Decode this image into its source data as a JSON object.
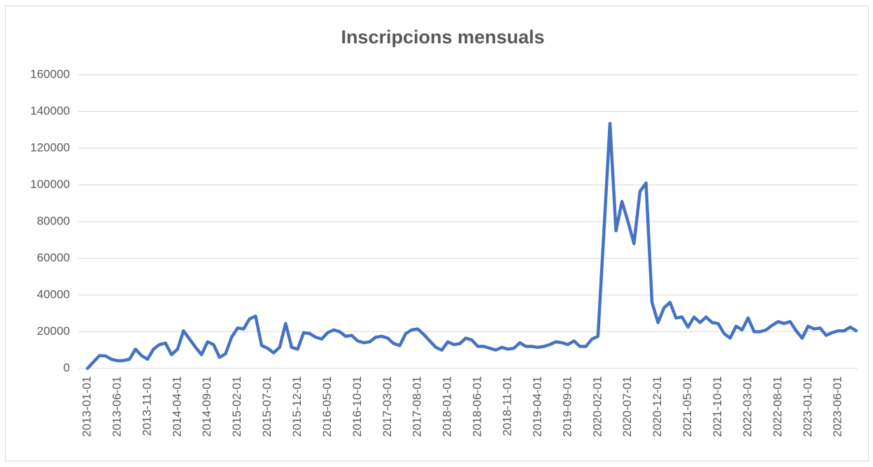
{
  "chart_data": {
    "type": "line",
    "title": "Inscripcions mensuals",
    "categories": [
      "2013-01-01",
      null,
      null,
      null,
      null,
      "2013-06-01",
      null,
      null,
      null,
      null,
      "2013-11-01",
      null,
      null,
      null,
      null,
      "2014-04-01",
      null,
      null,
      null,
      null,
      "2014-09-01",
      null,
      null,
      null,
      null,
      "2015-02-01",
      null,
      null,
      null,
      null,
      "2015-07-01",
      null,
      null,
      null,
      null,
      "2015-12-01",
      null,
      null,
      null,
      null,
      "2016-05-01",
      null,
      null,
      null,
      null,
      "2016-10-01",
      null,
      null,
      null,
      null,
      "2017-03-01",
      null,
      null,
      null,
      null,
      "2017-08-01",
      null,
      null,
      null,
      null,
      "2018-01-01",
      null,
      null,
      null,
      null,
      "2018-06-01",
      null,
      null,
      null,
      null,
      "2018-11-01",
      null,
      null,
      null,
      null,
      "2019-04-01",
      null,
      null,
      null,
      null,
      "2019-09-01",
      null,
      null,
      null,
      null,
      "2020-02-01",
      null,
      null,
      null,
      null,
      "2020-07-01",
      null,
      null,
      null,
      null,
      "2020-12-01",
      null,
      null,
      null,
      null,
      "2021-05-01",
      null,
      null,
      null,
      null,
      "2021-10-01",
      null,
      null,
      null,
      null,
      "2022-03-01",
      null,
      null,
      null,
      null,
      "2022-08-01",
      null,
      null,
      null,
      null,
      "2023-01-01",
      null,
      null,
      null,
      null,
      "2023-06-01",
      null,
      null,
      null
    ],
    "values": [
      0,
      3500,
      7000,
      6800,
      5000,
      4200,
      4300,
      5000,
      10500,
      7000,
      5000,
      10500,
      13000,
      13800,
      7500,
      10500,
      20500,
      16000,
      11500,
      7500,
      14500,
      13000,
      6000,
      8000,
      17000,
      22000,
      21500,
      27000,
      28500,
      12500,
      11000,
      8500,
      11500,
      24500,
      11500,
      10500,
      19500,
      19000,
      17000,
      16000,
      19500,
      21000,
      20000,
      17500,
      18000,
      15000,
      14000,
      14500,
      17000,
      17500,
      16500,
      13500,
      12500,
      19000,
      21000,
      21500,
      18500,
      15000,
      11500,
      10000,
      14500,
      13000,
      13500,
      16500,
      15500,
      12000,
      12000,
      11000,
      10000,
      11500,
      10500,
      11000,
      14000,
      12000,
      12000,
      11500,
      12000,
      13000,
      14500,
      14000,
      13000,
      15000,
      12000,
      12000,
      16000,
      17500,
      75000,
      133500,
      75000,
      91000,
      80000,
      68000,
      96500,
      101000,
      36000,
      25000,
      33000,
      36000,
      27500,
      28000,
      22500,
      28000,
      25000,
      28000,
      25000,
      24500,
      19000,
      16500,
      23000,
      21000,
      27500,
      20000,
      20000,
      21000,
      23500,
      25500,
      24500,
      25500,
      20500,
      16500,
      23000,
      21500,
      22000,
      18000,
      19500,
      20500,
      20500,
      22500,
      20500
    ],
    "color": "#4472c4",
    "ylim": [
      0,
      160000
    ],
    "yticks": [
      0,
      20000,
      40000,
      60000,
      80000,
      100000,
      120000,
      140000,
      160000
    ],
    "grid": true
  }
}
